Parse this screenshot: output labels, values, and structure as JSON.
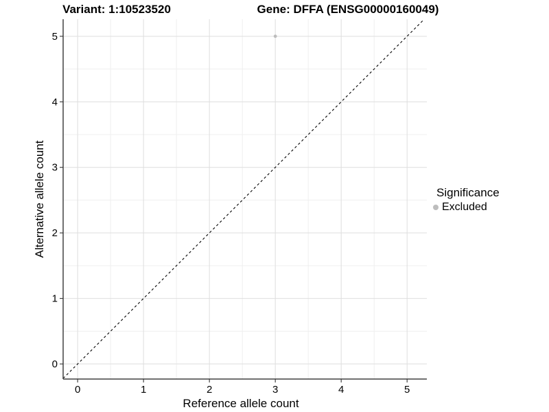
{
  "chart_data": {
    "type": "scatter",
    "title_left": "Variant: 1:10523520",
    "title_right": "Gene: DFFA (ENSG00000160049)",
    "xlabel": "Reference allele count",
    "ylabel": "Alternative allele count",
    "xlim": [
      -0.22,
      5.3
    ],
    "ylim": [
      -0.23,
      5.26
    ],
    "xticks": [
      0,
      1,
      2,
      3,
      4,
      5
    ],
    "yticks": [
      0,
      1,
      2,
      3,
      4,
      5
    ],
    "minor_xticks": [
      0.5,
      1.5,
      2.5,
      3.5,
      4.5
    ],
    "minor_yticks": [
      0.5,
      1.5,
      2.5,
      3.5,
      4.5
    ],
    "grid": true,
    "series": [
      {
        "name": "Excluded",
        "color": "#bdbdbd",
        "points": [
          {
            "x": 3,
            "y": 5
          }
        ]
      }
    ],
    "reference_line": {
      "type": "identity",
      "slope": 1,
      "intercept": 0,
      "style": "dashed",
      "color": "#000000"
    },
    "legend": {
      "title": "Significance",
      "position": "right",
      "items": [
        {
          "label": "Excluded",
          "color": "#bdbdbd"
        }
      ]
    }
  },
  "colors": {
    "background": "#ffffff",
    "grid_major": "#dedede",
    "grid_minor": "#efefef",
    "axis_line": "#404040",
    "tick_mark": "#333333",
    "text": "#000000"
  }
}
